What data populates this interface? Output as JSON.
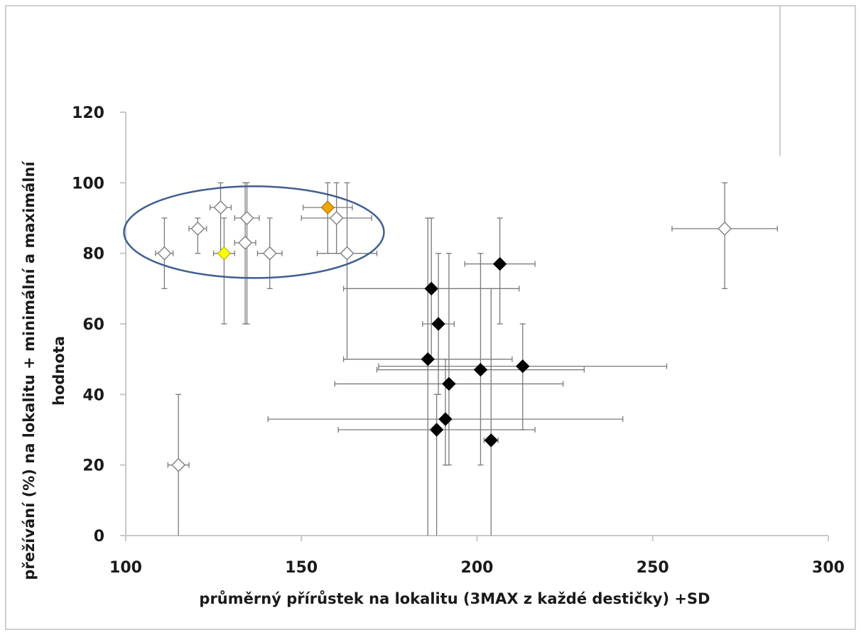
{
  "chart_data": {
    "type": "scatter",
    "title": "",
    "xlabel": "průměrný přírůstek na lokalitu (3MAX z každé destičky) +SD",
    "ylabel_line1": "přežívání (%) na lokalitu + minimální a maximální",
    "ylabel_line2": "hodnota",
    "xlim": [
      100,
      300
    ],
    "ylim": [
      0,
      120
    ],
    "x_ticks": [
      "100",
      "150",
      "200",
      "250",
      "300"
    ],
    "y_ticks": [
      "0",
      "20",
      "40",
      "60",
      "80",
      "100",
      "120"
    ],
    "grid": false,
    "legend": "none",
    "annotation": "ellipse highlighting the upper-left cluster of points",
    "colors": {
      "axis": "#c8c8c8",
      "error_bar": "#7a7a7a",
      "open_marker": "#808080",
      "black_marker": "#000000",
      "orange_marker": "#f0a500",
      "yellow_marker": "#ffff00",
      "ellipse": "#3f5f8f",
      "frame": "#bfbfbf"
    },
    "series": [
      {
        "marker": "open-diamond",
        "points": [
          {
            "x": 111,
            "y": 80,
            "x_err": 2.5,
            "y_min": 70,
            "y_max": 90
          },
          {
            "x": 115,
            "y": 20,
            "x_err": 3,
            "y_min": 0,
            "y_max": 40
          },
          {
            "x": 120.5,
            "y": 87,
            "x_err": 2.5,
            "y_min": 80,
            "y_max": 90
          },
          {
            "x": 127,
            "y": 93,
            "x_err": 3,
            "y_min": 80,
            "y_max": 100
          },
          {
            "x": 134,
            "y": 83,
            "x_err": 3,
            "y_min": 60,
            "y_max": 100
          },
          {
            "x": 134.5,
            "y": 90,
            "x_err": 3.5,
            "y_min": 60,
            "y_max": 100
          },
          {
            "x": 141,
            "y": 80,
            "x_err": 3.5,
            "y_min": 70,
            "y_max": 90
          },
          {
            "x": 160,
            "y": 90,
            "x_err": 10,
            "y_min": 80,
            "y_max": 100
          },
          {
            "x": 163,
            "y": 80,
            "x_err": 8.5,
            "y_min": 50,
            "y_max": 100
          },
          {
            "x": 270.5,
            "y": 87,
            "x_err": 15,
            "y_min": 70,
            "y_max": 100
          }
        ]
      },
      {
        "marker": "filled-diamond-orange",
        "points": [
          {
            "x": 157.5,
            "y": 93,
            "x_err": 7,
            "y_min": 80,
            "y_max": 100
          }
        ]
      },
      {
        "marker": "filled-diamond-yellow",
        "points": [
          {
            "x": 128,
            "y": 80,
            "x_err": 3,
            "y_min": 60,
            "y_max": 90
          }
        ]
      },
      {
        "marker": "filled-diamond-black",
        "points": [
          {
            "x": 187,
            "y": 70,
            "x_err": 25,
            "y_min": 50,
            "y_max": 90
          },
          {
            "x": 189,
            "y": 60,
            "x_err": 4.5,
            "y_min": 40,
            "y_max": 80
          },
          {
            "x": 186,
            "y": 50,
            "x_err": 24,
            "y_min": 0,
            "y_max": 90
          },
          {
            "x": 188.5,
            "y": 30,
            "x_err": 28,
            "y_min": 0,
            "y_max": 40
          },
          {
            "x": 191,
            "y": 33,
            "x_err": 50.5,
            "y_min": 20,
            "y_max": 50
          },
          {
            "x": 192,
            "y": 43,
            "x_err": 32.5,
            "y_min": 20,
            "y_max": 80
          },
          {
            "x": 201,
            "y": 47,
            "x_err": 29.5,
            "y_min": 20,
            "y_max": 80
          },
          {
            "x": 204,
            "y": 27,
            "x_err": 2,
            "y_min": 0,
            "y_max": 70
          },
          {
            "x": 206.5,
            "y": 77,
            "x_err": 10,
            "y_min": 60,
            "y_max": 90
          },
          {
            "x": 213,
            "y": 48,
            "x_err": 41,
            "y_min": 30,
            "y_max": 60
          }
        ]
      }
    ]
  }
}
